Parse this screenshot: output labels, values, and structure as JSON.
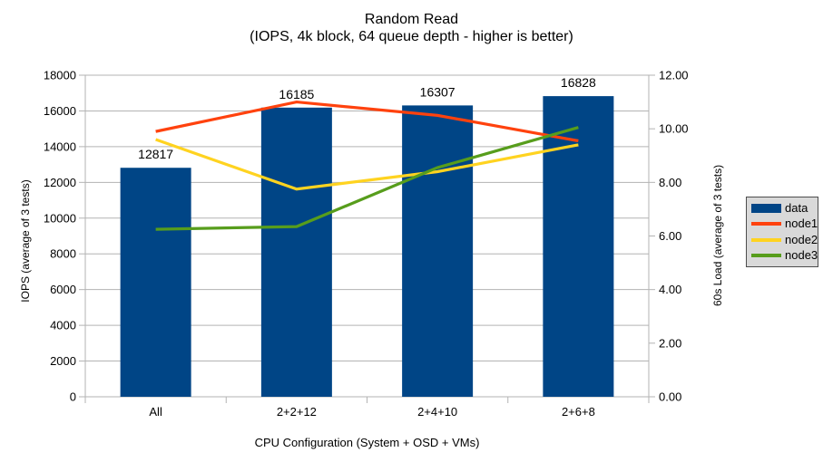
{
  "chart_data": {
    "type": "combo",
    "title": "Random Read",
    "subtitle": "(IOPS, 4k block, 64 queue depth - higher is better)",
    "categories": [
      "All",
      "2+2+12",
      "2+4+10",
      "2+6+8"
    ],
    "xlabel": "CPU Configuration (System + OSD + VMs)",
    "left_axis": {
      "label": "IOPS (average of 3 tests)",
      "min": 0,
      "max": 18000,
      "step": 2000
    },
    "right_axis": {
      "label": "60s Load (average of 3 tests)",
      "min": 0,
      "max": 12,
      "step": 2
    },
    "grid": true,
    "legend_position": "right",
    "colors": {
      "grid": "#b3b3b3",
      "bar": "#004586",
      "node1": "#ff420e",
      "node2": "#ffd320",
      "node3": "#579d1c"
    },
    "series": [
      {
        "name": "data",
        "type": "bar",
        "axis": "left",
        "color": "#004586",
        "values": [
          12817,
          16185,
          16307,
          16828
        ],
        "data_labels": [
          "12817",
          "16185",
          "16307",
          "16828"
        ]
      },
      {
        "name": "node1",
        "type": "line",
        "axis": "right",
        "color": "#ff420e",
        "values": [
          9.9,
          11.0,
          10.5,
          9.55
        ]
      },
      {
        "name": "node2",
        "type": "line",
        "axis": "right",
        "color": "#ffd320",
        "values": [
          9.6,
          7.75,
          8.4,
          9.4
        ]
      },
      {
        "name": "node3",
        "type": "line",
        "axis": "right",
        "color": "#579d1c",
        "values": [
          6.25,
          6.35,
          8.55,
          10.05
        ]
      }
    ],
    "legend": [
      "data",
      "node1",
      "node2",
      "node3"
    ]
  }
}
